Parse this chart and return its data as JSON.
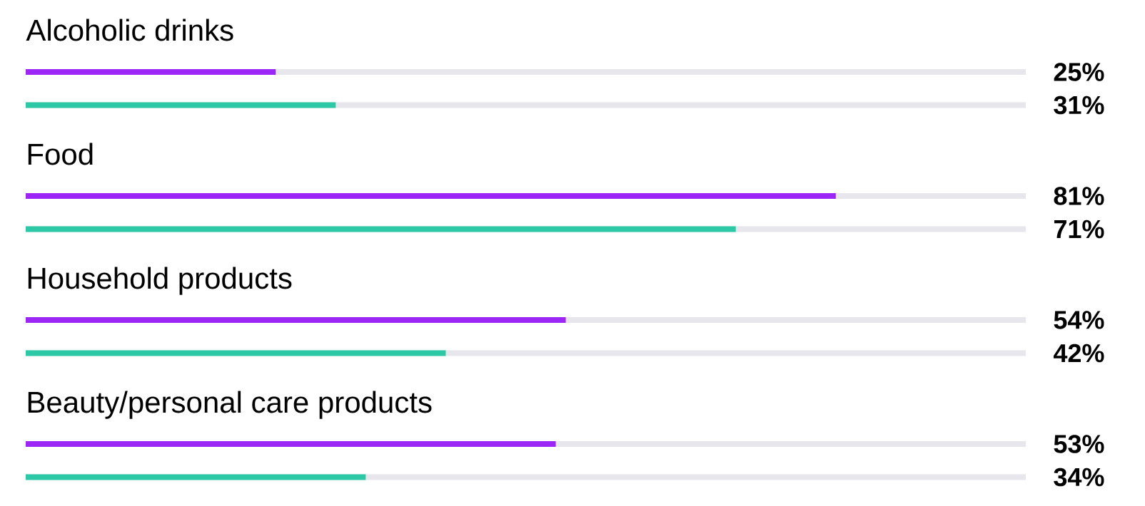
{
  "chart_data": {
    "type": "bar",
    "orientation": "horizontal",
    "categories": [
      "Alcoholic drinks",
      "Food",
      "Household products",
      "Beauty/personal care products"
    ],
    "series": [
      {
        "color": "#9b26f6",
        "values": [
          25,
          81,
          54,
          53
        ],
        "value_labels": [
          "25%",
          "81%",
          "54%",
          "53%"
        ]
      },
      {
        "color": "#2dc9a6",
        "values": [
          31,
          71,
          42,
          34
        ],
        "value_labels": [
          "31%",
          "71%",
          "42%",
          "34%"
        ]
      }
    ],
    "xlim": [
      0,
      100
    ]
  }
}
